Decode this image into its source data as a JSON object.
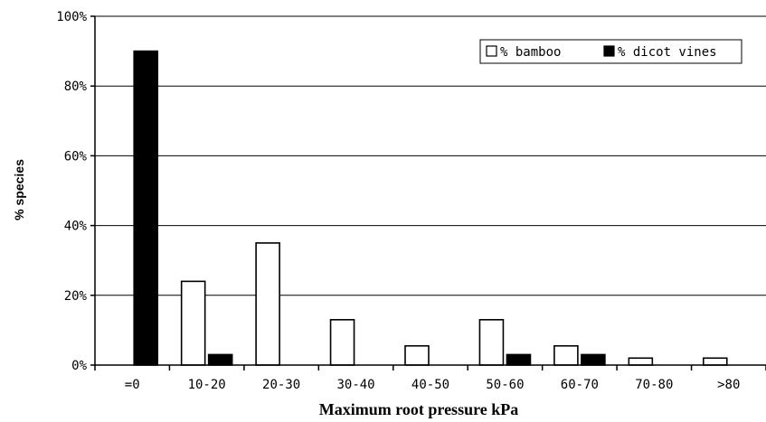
{
  "chart_data": {
    "type": "bar",
    "title": "",
    "xlabel": "Maximum root pressure kPa",
    "ylabel": "% species",
    "ylim": [
      0,
      100
    ],
    "yticks": [
      0,
      20,
      40,
      60,
      80,
      100
    ],
    "ytick_labels": [
      "0%",
      "20%",
      "40%",
      "60%",
      "80%",
      "100%"
    ],
    "categories": [
      "=0",
      "10-20",
      "20-30",
      "30-40",
      "40-50",
      "50-60",
      "60-70",
      "70-80",
      ">80"
    ],
    "series": [
      {
        "name": "% bamboo",
        "color": "#ffffff",
        "values": [
          0,
          24,
          35,
          13,
          5.5,
          13,
          5.5,
          2,
          2
        ]
      },
      {
        "name": "% dicot vines",
        "color": "#000000",
        "values": [
          90,
          3,
          0,
          0,
          0,
          3,
          3,
          0,
          0
        ]
      }
    ],
    "grid": true,
    "legend_position": "top-right"
  }
}
